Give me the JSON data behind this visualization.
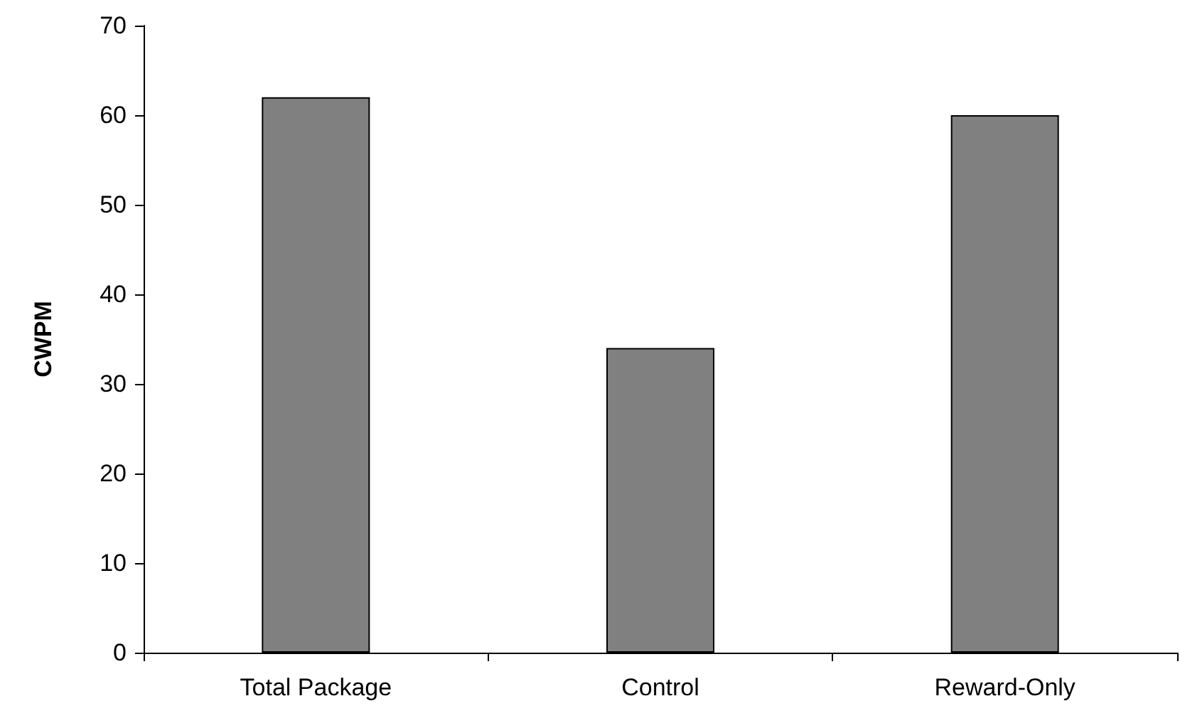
{
  "chart_data": {
    "type": "bar",
    "ylabel": "CWPM",
    "categories": [
      "Total Package",
      "Control",
      "Reward-Only"
    ],
    "values": [
      62,
      34,
      60
    ],
    "color": "#808080",
    "ylim": [
      0,
      70
    ],
    "yticks": [
      0,
      10,
      20,
      30,
      40,
      50,
      60,
      70
    ],
    "grid": false
  }
}
